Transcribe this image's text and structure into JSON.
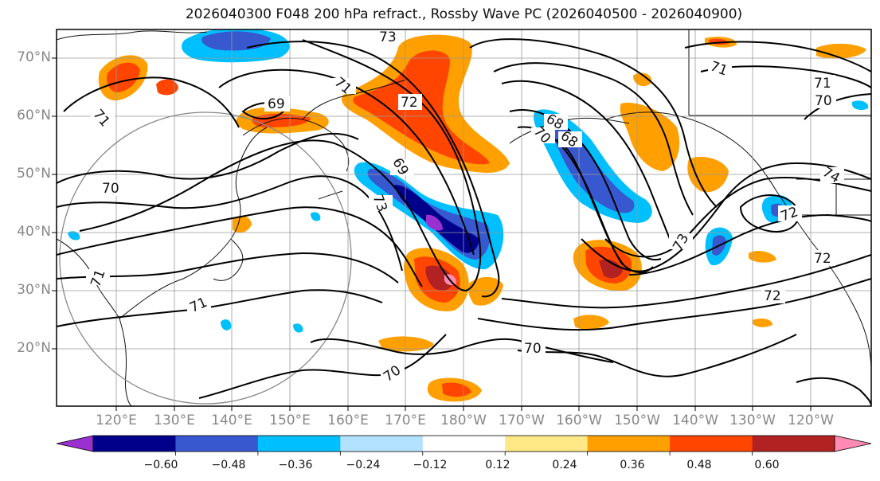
{
  "title": "2026040300 F048 200 hPa refract., Rossby Wave PC (2026040500 - 2026040900)",
  "lat_ticks": [
    "70°N",
    "60°N",
    "50°N",
    "40°N",
    "30°N",
    "20°N"
  ],
  "lon_ticks": [
    "120°E",
    "130°E",
    "140°E",
    "150°E",
    "160°E",
    "170°E",
    "180°W",
    "170°W",
    "160°W",
    "150°W",
    "140°W",
    "130°W",
    "120°W"
  ],
  "contour_labels": [
    "73",
    "71",
    "72",
    "69",
    "71",
    "70",
    "69",
    "73",
    "68",
    "70",
    "68",
    "71",
    "71",
    "70",
    "74",
    "72",
    "73",
    "72",
    "72",
    "71",
    "70",
    "70",
    "71"
  ],
  "colorbar": {
    "colors": [
      "#9b30d0",
      "#00008b",
      "#3858d0",
      "#00bfff",
      "#b3e2ff",
      "#ffffff",
      "#ffe885",
      "#ffa000",
      "#ff4500",
      "#b22222",
      "#ff8ab4"
    ],
    "labels": [
      "−0.60",
      "−0.48",
      "−0.36",
      "−0.24",
      "−0.12",
      "0.12",
      "0.24",
      "0.36",
      "0.48",
      "0.60"
    ]
  }
}
